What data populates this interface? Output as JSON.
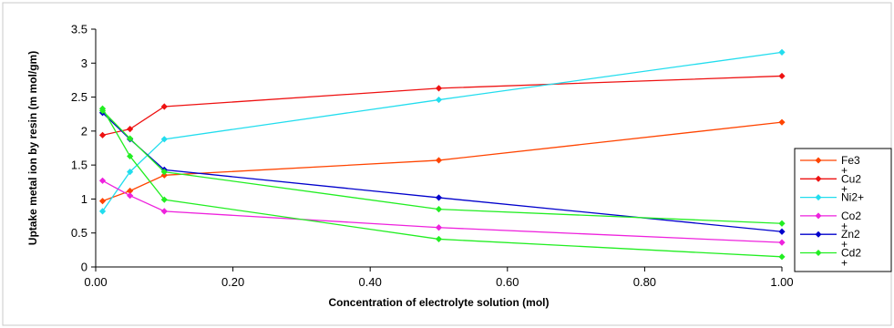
{
  "chart_data": {
    "type": "line",
    "title": "",
    "xlabel": "Concentration of electrolyte solution (mol)",
    "ylabel": "Uptake metal ion by resin (m mol/gm)",
    "xlim": [
      0,
      1
    ],
    "ylim": [
      0,
      3.5
    ],
    "x_ticks": [
      "0.00",
      "0.20",
      "0.40",
      "0.60",
      "0.80",
      "1.00"
    ],
    "y_ticks": [
      "0",
      "0.5",
      "1",
      "1.5",
      "2",
      "2.5",
      "3",
      "3.5"
    ],
    "x_tick_values": [
      0,
      0.2,
      0.4,
      0.6,
      0.8,
      1.0
    ],
    "y_tick_values": [
      0,
      0.5,
      1,
      1.5,
      2,
      2.5,
      3,
      3.5
    ],
    "legend_position": "right",
    "grid": false,
    "x": [
      0.01,
      0.05,
      0.1,
      0.5,
      1.0
    ],
    "series": [
      {
        "name": "Fe3+",
        "legend_lines": [
          "Fe3",
          "+"
        ],
        "color": "#ff4400",
        "values": [
          0.97,
          1.12,
          1.35,
          1.57,
          2.13
        ]
      },
      {
        "name": "Cu2+",
        "legend_lines": [
          "Cu2",
          "+"
        ],
        "color": "#ee1111",
        "values": [
          1.94,
          2.03,
          2.36,
          2.63,
          2.81
        ]
      },
      {
        "name": "Ni2+",
        "legend_lines": [
          "Ni2+"
        ],
        "color": "#22ddee",
        "values": [
          0.82,
          1.4,
          1.88,
          2.46,
          3.16
        ]
      },
      {
        "name": "Co2+",
        "legend_lines": [
          "Co2",
          "+"
        ],
        "color": "#ee22dd",
        "values": [
          1.27,
          1.05,
          0.82,
          0.58,
          0.36
        ]
      },
      {
        "name": "Zn2+",
        "legend_lines": [
          "Zn2",
          "+"
        ],
        "color": "#0000cc",
        "values": [
          2.27,
          1.88,
          1.43,
          1.02,
          0.52
        ]
      },
      {
        "name": "Cd2+",
        "legend_lines": [
          "Cd2",
          "+"
        ],
        "color": "#22ee22",
        "values": [
          2.3,
          1.89,
          1.4,
          0.85,
          0.64
        ]
      },
      {
        "name": "",
        "legend_lines": [],
        "color": "#22ee22",
        "values": [
          2.33,
          1.63,
          0.99,
          0.41,
          0.15
        ]
      }
    ]
  }
}
